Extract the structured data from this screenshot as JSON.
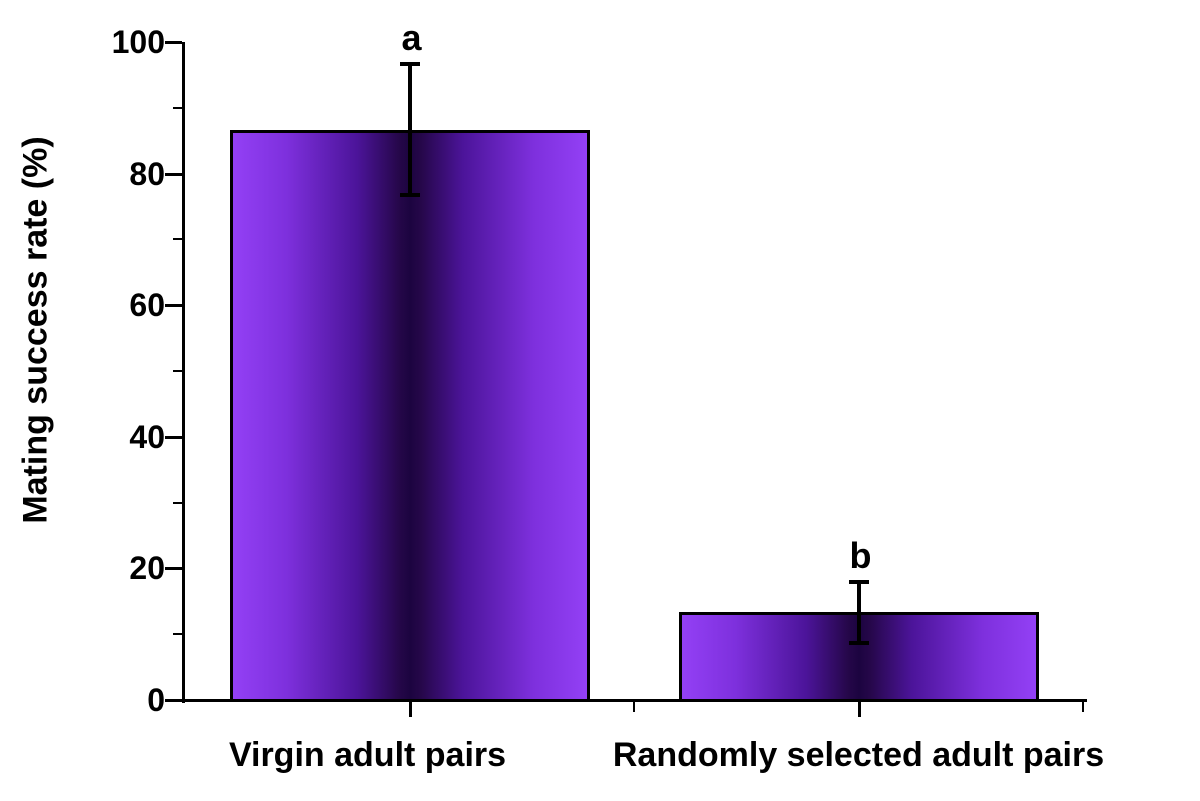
{
  "chart_data": {
    "type": "bar",
    "title": "",
    "xlabel": "",
    "ylabel": "Mating success rate (%)",
    "ylim": [
      0,
      100
    ],
    "y_major_ticks": [
      0,
      20,
      40,
      60,
      80,
      100
    ],
    "y_minor_ticks": [
      10,
      30,
      50,
      70,
      90
    ],
    "categories": [
      "Virgin adult pairs",
      "Randomly selected adult pairs"
    ],
    "values": [
      86.7,
      13.3
    ],
    "errors_plus": [
      9.9,
      4.6
    ],
    "errors_minus": [
      9.9,
      4.6
    ],
    "significance_letters": [
      "a",
      "b"
    ],
    "grid": false,
    "legend": null,
    "colors": {
      "bar_edge_fill": "#9340f5",
      "bar_mid_fill": "#4c149a",
      "bar_center_fill": "#1c0440",
      "bar_border": "#000000",
      "axis": "#000000",
      "text": "#000000",
      "background": "#ffffff"
    }
  }
}
